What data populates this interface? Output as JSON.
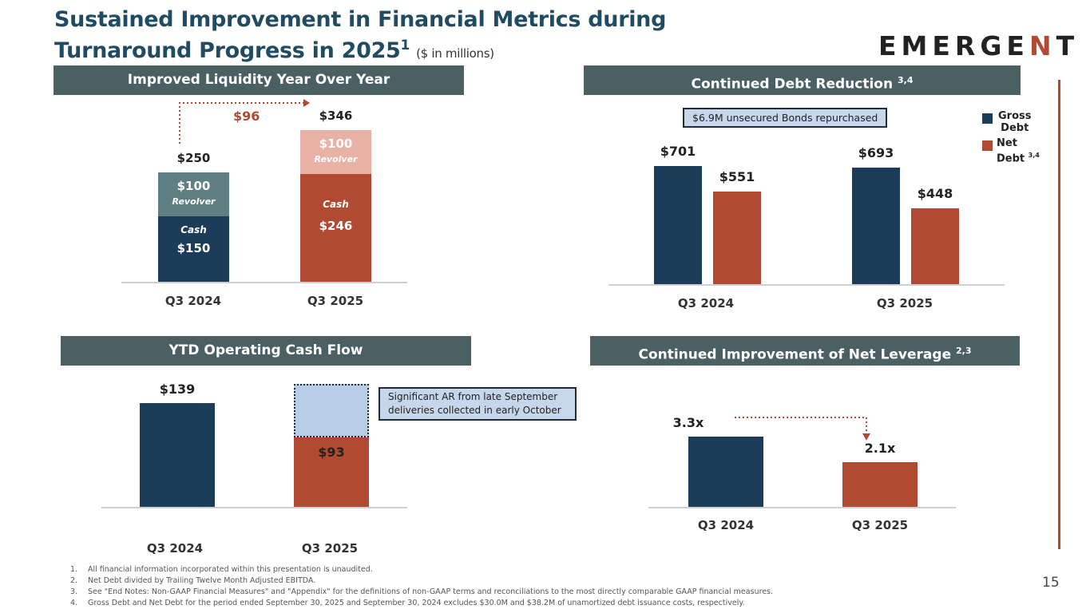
{
  "title": {
    "line1": "Sustained Improvement in Financial Metrics during",
    "line2": "Turnaround Progress in 2025",
    "sup": "1",
    "unit": "($ in millions)"
  },
  "logo": "EMERGENT",
  "colors": {
    "navy": "#1b3d5a",
    "rust": "#b14a33",
    "teal": "#5f7f83",
    "pink": "#e8b3a6",
    "lightblue": "#b8cde6",
    "header": "#4a6063"
  },
  "page_number": "15",
  "panels": {
    "liquidity": {
      "header": "Improved Liquidity Year Over Year",
      "delta": "$96"
    },
    "debt": {
      "header": "Continued Debt Reduction",
      "sup": "3,4",
      "note": "$6.9M unsecured Bonds repurchased",
      "legend": [
        {
          "label1": "Gross",
          "label2": "Debt",
          "sup": ""
        },
        {
          "label1": "Net",
          "label2": "Debt",
          "sup": "3,4"
        }
      ]
    },
    "cashflow": {
      "header": "YTD Operating Cash Flow",
      "note": "Significant AR from late September deliveries collected in early October"
    },
    "leverage": {
      "header": "Continued Improvement of Net Leverage",
      "sup": "2,3"
    }
  },
  "chart_data": [
    {
      "type": "bar",
      "stacked": true,
      "categories": [
        "Q3 2024",
        "Q3 2025"
      ],
      "series": [
        {
          "name": "Cash",
          "values": [
            150,
            246
          ],
          "labels": [
            "$150",
            "$246"
          ]
        },
        {
          "name": "Revolver",
          "values": [
            100,
            100
          ],
          "labels": [
            "$100",
            "$100"
          ]
        }
      ],
      "totals": [
        "$250",
        "$346"
      ]
    },
    {
      "type": "bar",
      "categories": [
        "Q3 2024",
        "Q3 2025"
      ],
      "series": [
        {
          "name": "Gross Debt",
          "values": [
            701,
            693
          ],
          "labels": [
            "$701",
            "$693"
          ]
        },
        {
          "name": "Net Debt",
          "values": [
            551,
            448
          ],
          "labels": [
            "$551",
            "$448"
          ]
        }
      ]
    },
    {
      "type": "bar",
      "categories": [
        "Q3 2024",
        "Q3 2025"
      ],
      "values": [
        139,
        93
      ],
      "labels": [
        "$139",
        "$93"
      ]
    },
    {
      "type": "bar",
      "categories": [
        "Q3 2024",
        "Q3 2025"
      ],
      "values": [
        3.3,
        2.1
      ],
      "labels": [
        "3.3x",
        "2.1x"
      ]
    }
  ],
  "footnotes": [
    {
      "n": "1.",
      "text": "All financial information incorporated within this presentation is unaudited."
    },
    {
      "n": "2.",
      "text": "Net Debt divided by Trailing Twelve Month Adjusted EBITDA."
    },
    {
      "n": "3.",
      "text": "See \"End Notes: Non-GAAP Financial Measures\" and \"Appendix\" for the definitions of non-GAAP terms and reconciliations to the most directly comparable GAAP financial measures."
    },
    {
      "n": "4.",
      "text": "Gross Debt and Net Debt for the period ended September 30, 2025 and September 30, 2024 excludes $30.0M and $38.2M of unamortized debt issuance costs, respectively."
    }
  ]
}
